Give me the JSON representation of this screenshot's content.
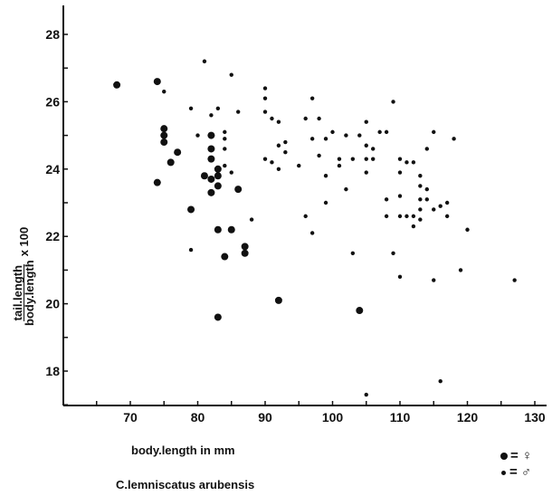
{
  "chart_data": {
    "type": "scatter",
    "xlabel": "body.length in mm",
    "ylabel_numerator": "tail.length",
    "ylabel_denominator": "body.length",
    "ylabel_suffix": "x 100",
    "caption": "C.lemniscatus arubensis",
    "xlim": [
      60,
      130
    ],
    "ylim": [
      17,
      29
    ],
    "x_ticks": [
      70,
      80,
      90,
      100,
      110,
      120,
      130
    ],
    "y_ticks": [
      18,
      20,
      22,
      24,
      26,
      28
    ],
    "legend": [
      {
        "marker": "large-dot",
        "symbol": "= ♀"
      },
      {
        "marker": "small-dot",
        "symbol": "= ♂"
      }
    ],
    "series": [
      {
        "marker": "large-dot",
        "points": [
          [
            68,
            26.5
          ],
          [
            74,
            26.6
          ],
          [
            74,
            23.6
          ],
          [
            75,
            25.2
          ],
          [
            75,
            25.0
          ],
          [
            75,
            24.8
          ],
          [
            76,
            24.2
          ],
          [
            77,
            24.5
          ],
          [
            79,
            22.8
          ],
          [
            81,
            23.8
          ],
          [
            82,
            25.0
          ],
          [
            82,
            24.6
          ],
          [
            82,
            24.3
          ],
          [
            82,
            23.7
          ],
          [
            82,
            23.3
          ],
          [
            83,
            24.0
          ],
          [
            83,
            23.8
          ],
          [
            83,
            23.5
          ],
          [
            83,
            22.2
          ],
          [
            84,
            21.4
          ],
          [
            85,
            22.2
          ],
          [
            86,
            23.4
          ],
          [
            87,
            21.7
          ],
          [
            87,
            21.5
          ],
          [
            83,
            19.6
          ],
          [
            92,
            20.1
          ],
          [
            104,
            19.8
          ]
        ]
      },
      {
        "marker": "small-dot",
        "points": [
          [
            75,
            26.3
          ],
          [
            79,
            25.8
          ],
          [
            79,
            21.6
          ],
          [
            80,
            25.0
          ],
          [
            81,
            27.2
          ],
          [
            82,
            25.6
          ],
          [
            83,
            25.8
          ],
          [
            84,
            25.1
          ],
          [
            84,
            24.9
          ],
          [
            84,
            24.6
          ],
          [
            84,
            24.1
          ],
          [
            85,
            23.9
          ],
          [
            85,
            26.8
          ],
          [
            86,
            25.7
          ],
          [
            88,
            22.5
          ],
          [
            90,
            26.4
          ],
          [
            90,
            26.1
          ],
          [
            90,
            25.7
          ],
          [
            90,
            24.3
          ],
          [
            91,
            25.5
          ],
          [
            91,
            24.2
          ],
          [
            92,
            25.4
          ],
          [
            92,
            24.7
          ],
          [
            92,
            24.0
          ],
          [
            93,
            24.8
          ],
          [
            93,
            24.5
          ],
          [
            95,
            24.1
          ],
          [
            96,
            25.5
          ],
          [
            96,
            22.6
          ],
          [
            97,
            26.1
          ],
          [
            97,
            24.9
          ],
          [
            97,
            22.1
          ],
          [
            98,
            25.5
          ],
          [
            98,
            24.4
          ],
          [
            99,
            24.9
          ],
          [
            99,
            23.8
          ],
          [
            99,
            23.0
          ],
          [
            100,
            25.1
          ],
          [
            101,
            24.3
          ],
          [
            101,
            24.1
          ],
          [
            102,
            25.0
          ],
          [
            102,
            23.4
          ],
          [
            103,
            24.3
          ],
          [
            103,
            21.5
          ],
          [
            104,
            25.0
          ],
          [
            105,
            25.4
          ],
          [
            105,
            24.7
          ],
          [
            105,
            24.3
          ],
          [
            105,
            23.9
          ],
          [
            105,
            17.3
          ],
          [
            106,
            24.6
          ],
          [
            106,
            24.3
          ],
          [
            107,
            25.1
          ],
          [
            108,
            25.1
          ],
          [
            108,
            23.1
          ],
          [
            108,
            22.6
          ],
          [
            109,
            26.0
          ],
          [
            109,
            21.5
          ],
          [
            110,
            24.3
          ],
          [
            110,
            23.9
          ],
          [
            110,
            23.2
          ],
          [
            110,
            22.6
          ],
          [
            110,
            20.8
          ],
          [
            111,
            24.2
          ],
          [
            111,
            22.6
          ],
          [
            112,
            24.2
          ],
          [
            112,
            22.6
          ],
          [
            112,
            22.3
          ],
          [
            113,
            23.8
          ],
          [
            113,
            23.5
          ],
          [
            113,
            23.1
          ],
          [
            113,
            22.8
          ],
          [
            113,
            22.5
          ],
          [
            114,
            24.6
          ],
          [
            114,
            23.4
          ],
          [
            114,
            23.1
          ],
          [
            115,
            25.1
          ],
          [
            115,
            22.8
          ],
          [
            115,
            20.7
          ],
          [
            116,
            22.9
          ],
          [
            116,
            17.7
          ],
          [
            117,
            23.0
          ],
          [
            117,
            22.6
          ],
          [
            118,
            24.9
          ],
          [
            119,
            21.0
          ],
          [
            120,
            22.2
          ],
          [
            127,
            20.7
          ]
        ]
      }
    ]
  }
}
